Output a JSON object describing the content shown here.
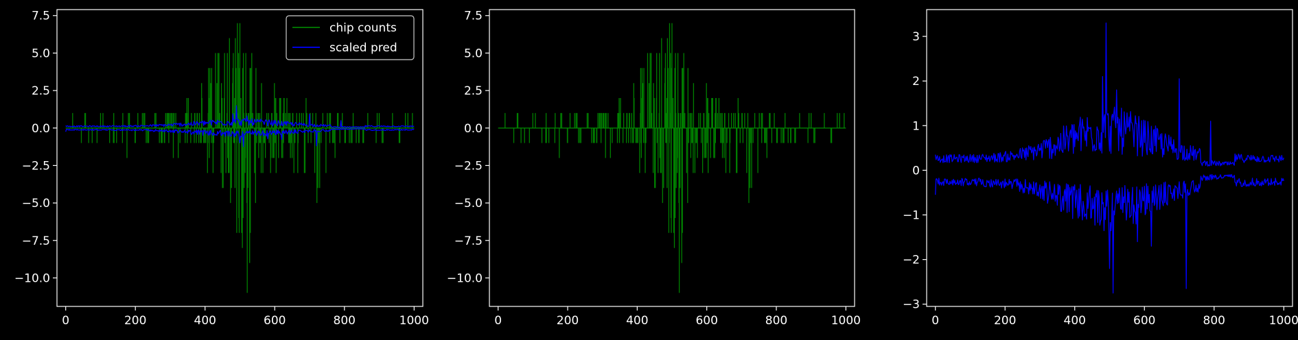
{
  "theme": {
    "background": "#000000",
    "axes_color": "#ffffff",
    "text_color": "#ffffff"
  },
  "chart_data": [
    {
      "type": "line",
      "title": "",
      "xlabel": "",
      "ylabel": "",
      "xlim": [
        -25,
        1025
      ],
      "ylim": [
        -11.9,
        7.9
      ],
      "xticks": [
        0,
        200,
        400,
        600,
        800,
        1000
      ],
      "xtick_labels": [
        "0",
        "200",
        "400",
        "600",
        "800",
        "1000"
      ],
      "yticks": [
        7.5,
        5.0,
        2.5,
        0.0,
        -2.5,
        -5.0,
        -7.5,
        -10.0
      ],
      "ytick_labels": [
        "7.5",
        "5.0",
        "2.5",
        "0.0",
        "−2.5",
        "−5.0",
        "−7.5",
        "−10.0"
      ],
      "grid": false,
      "legend": "top-right",
      "series": [
        {
          "name": "chip counts",
          "color": "#008000",
          "style": "spikes",
          "x_range": [
            0,
            1000
          ],
          "count_envelope": [
            [
              0,
              1
            ],
            [
              300,
              1.5
            ],
            [
              400,
              3.5
            ],
            [
              470,
              6.5
            ],
            [
              500,
              7
            ],
            [
              520,
              6
            ],
            [
              560,
              3.5
            ],
            [
              650,
              2
            ],
            [
              760,
              1
            ],
            [
              1000,
              1
            ]
          ],
          "neg_envelope": [
            [
              0,
              1
            ],
            [
              300,
              1.5
            ],
            [
              420,
              3
            ],
            [
              480,
              6
            ],
            [
              520,
              11
            ],
            [
              560,
              4
            ],
            [
              650,
              2.5
            ],
            [
              720,
              5
            ],
            [
              800,
              1
            ],
            [
              1000,
              1
            ]
          ]
        },
        {
          "name": "scaled pred",
          "color": "#0000ff",
          "style": "band",
          "x_range": [
            0,
            1000
          ],
          "peak_pos": 3.3,
          "peak_neg": -2.7
        }
      ]
    },
    {
      "type": "line",
      "title": "",
      "xlabel": "",
      "ylabel": "",
      "xlim": [
        -25,
        1025
      ],
      "ylim": [
        -11.9,
        7.9
      ],
      "xticks": [
        0,
        200,
        400,
        600,
        800,
        1000
      ],
      "xtick_labels": [
        "0",
        "200",
        "400",
        "600",
        "800",
        "1000"
      ],
      "yticks": [
        7.5,
        5.0,
        2.5,
        0.0,
        -2.5,
        -5.0,
        -7.5,
        -10.0
      ],
      "ytick_labels": [
        "7.5",
        "5.0",
        "2.5",
        "0.0",
        "−2.5",
        "−5.0",
        "−7.5",
        "−10.0"
      ],
      "grid": false,
      "legend": "none",
      "series": [
        {
          "color": "#008000",
          "style": "spikes",
          "x_range": [
            0,
            1000
          ],
          "max": 7,
          "min": -11
        }
      ]
    },
    {
      "type": "line",
      "title": "",
      "xlabel": "",
      "ylabel": "",
      "xlim": [
        -25,
        1025
      ],
      "ylim": [
        -3.05,
        3.6
      ],
      "xticks": [
        0,
        200,
        400,
        600,
        800,
        1000
      ],
      "xtick_labels": [
        "0",
        "200",
        "400",
        "600",
        "800",
        "1000"
      ],
      "yticks": [
        3,
        2,
        1,
        0,
        -1,
        -2,
        -3
      ],
      "ytick_labels": [
        "3",
        "2",
        "1",
        "0",
        "−1",
        "−2",
        "−3"
      ],
      "grid": false,
      "legend": "none",
      "series": [
        {
          "color": "#0000ff",
          "style": "band",
          "x_range": [
            0,
            1000
          ],
          "max": 3.3,
          "min": -2.75
        }
      ]
    }
  ],
  "legend": {
    "items": [
      {
        "label": "chip counts",
        "color": "#008000"
      },
      {
        "label": "scaled pred",
        "color": "#0000ff"
      }
    ]
  }
}
